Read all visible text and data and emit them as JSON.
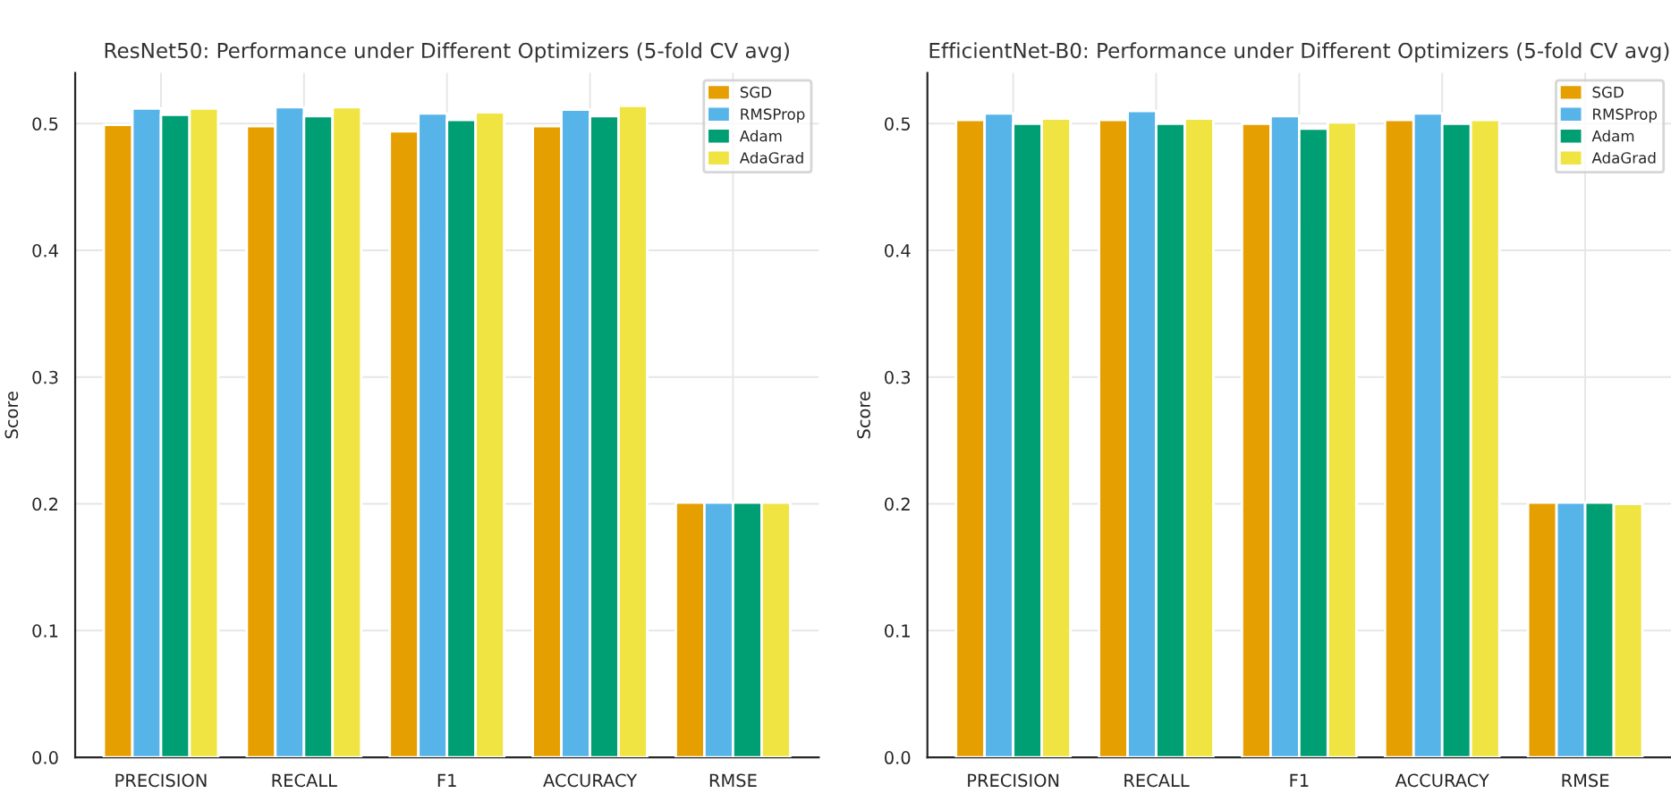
{
  "chart_data": [
    {
      "type": "bar",
      "title": "ResNet50: Performance under Different Optimizers (5-fold CV avg)",
      "ylabel": "Score",
      "categories": [
        "PRECISION",
        "RECALL",
        "F1",
        "ACCURACY",
        "RMSE"
      ],
      "series": [
        {
          "name": "SGD",
          "color": "#e69f00",
          "values": [
            0.499,
            0.498,
            0.494,
            0.498,
            0.201
          ]
        },
        {
          "name": "RMSProp",
          "color": "#56b4e9",
          "values": [
            0.512,
            0.513,
            0.508,
            0.511,
            0.201
          ]
        },
        {
          "name": "Adam",
          "color": "#009e73",
          "values": [
            0.507,
            0.506,
            0.503,
            0.506,
            0.201
          ]
        },
        {
          "name": "AdaGrad",
          "color": "#f0e442",
          "values": [
            0.512,
            0.513,
            0.509,
            0.514,
            0.201
          ]
        }
      ],
      "ylim": [
        0,
        0.54
      ],
      "yticks": [
        {
          "value": 0,
          "label": "0.0"
        },
        0.1,
        0.2,
        0.3,
        0.4,
        0.5
      ],
      "grid": true,
      "legend": "top right"
    },
    {
      "type": "bar",
      "title": "EfficientNet-B0: Performance under Different Optimizers (5-fold CV avg)",
      "ylabel": "Score",
      "categories": [
        "PRECISION",
        "RECALL",
        "F1",
        "ACCURACY",
        "RMSE"
      ],
      "series": [
        {
          "name": "SGD",
          "color": "#e69f00",
          "values": [
            0.503,
            0.503,
            0.5,
            0.503,
            0.201
          ]
        },
        {
          "name": "RMSProp",
          "color": "#56b4e9",
          "values": [
            0.508,
            0.51,
            0.506,
            0.508,
            0.201
          ]
        },
        {
          "name": "Adam",
          "color": "#009e73",
          "values": [
            0.5,
            0.5,
            0.496,
            0.5,
            0.201
          ]
        },
        {
          "name": "AdaGrad",
          "color": "#f0e442",
          "values": [
            0.504,
            0.504,
            0.501,
            0.503,
            0.2
          ]
        }
      ],
      "ylim": [
        0,
        0.54
      ],
      "yticks": [
        {
          "value": 0,
          "label": "0.0"
        },
        0.1,
        0.2,
        0.3,
        0.4,
        0.5
      ],
      "grid": true,
      "legend": "top right"
    }
  ]
}
